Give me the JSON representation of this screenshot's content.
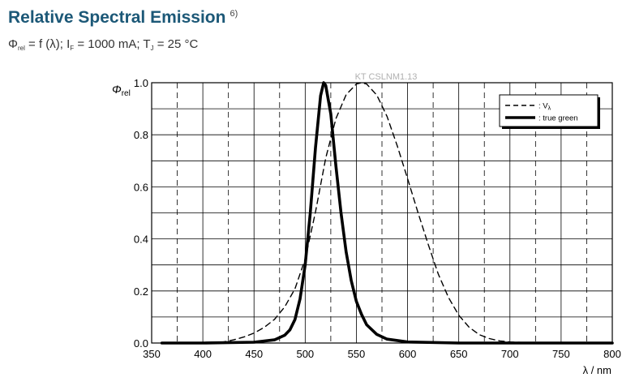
{
  "header": {
    "title": "Relative Spectral Emission",
    "title_footnote": "6)",
    "cond_phi": "Φ",
    "cond_phi_sub": "rel",
    "cond_part1": " = f (λ); I",
    "cond_if_sub": "F",
    "cond_part2": " = 1000 mA; T",
    "cond_tj_sub": "J",
    "cond_part3": " = 25 °C"
  },
  "chart_data": {
    "type": "line",
    "title": "Relative Spectral Emission",
    "watermark": "KT CSLNM1.13",
    "ylabel": "Φ",
    "ylabel_sub": "rel",
    "xlabel": "λ / nm",
    "xlim": [
      350,
      800
    ],
    "ylim": [
      0.0,
      1.0
    ],
    "x_ticks": [
      350,
      400,
      450,
      500,
      550,
      600,
      650,
      700,
      750,
      800
    ],
    "x_tick_labels": [
      "350",
      "400",
      "450",
      "500",
      "550",
      "600",
      "650",
      "700",
      "750",
      "800"
    ],
    "y_ticks": [
      0.0,
      0.2,
      0.4,
      0.6,
      0.8,
      1.0
    ],
    "y_tick_labels": [
      "0.0",
      "0.2",
      "0.4",
      "0.6",
      "0.8",
      "1.0"
    ],
    "grid": true,
    "legend_position": "top-right",
    "series": [
      {
        "name": "V",
        "legend_label": ": V",
        "legend_sub": "λ",
        "style": "dashed",
        "x": [
          360,
          380,
          400,
          410,
          420,
          430,
          440,
          450,
          460,
          470,
          480,
          490,
          500,
          510,
          520,
          530,
          540,
          550,
          555,
          560,
          570,
          580,
          590,
          600,
          610,
          620,
          630,
          640,
          650,
          660,
          670,
          680,
          690,
          700,
          720,
          740,
          760,
          780,
          800
        ],
        "y": [
          0.0,
          0.0,
          0.0,
          0.002,
          0.004,
          0.012,
          0.023,
          0.038,
          0.06,
          0.091,
          0.139,
          0.208,
          0.323,
          0.503,
          0.71,
          0.862,
          0.954,
          0.995,
          1.0,
          0.995,
          0.952,
          0.87,
          0.757,
          0.631,
          0.503,
          0.381,
          0.265,
          0.175,
          0.107,
          0.061,
          0.032,
          0.017,
          0.008,
          0.004,
          0.001,
          0.0,
          0.0,
          0.0,
          0.0
        ]
      },
      {
        "name": "true green",
        "legend_label": ": true green",
        "style": "solid",
        "x": [
          360,
          400,
          450,
          470,
          480,
          485,
          490,
          495,
          500,
          505,
          510,
          515,
          518,
          520,
          525,
          530,
          535,
          540,
          545,
          550,
          555,
          560,
          570,
          580,
          600,
          650,
          700,
          800
        ],
        "y": [
          0.0,
          0.0,
          0.003,
          0.012,
          0.03,
          0.05,
          0.09,
          0.17,
          0.3,
          0.5,
          0.75,
          0.95,
          1.0,
          0.99,
          0.88,
          0.68,
          0.5,
          0.35,
          0.24,
          0.16,
          0.11,
          0.07,
          0.033,
          0.015,
          0.004,
          0.0,
          0.0,
          0.0
        ]
      }
    ]
  },
  "style": {
    "title_color": "#1c5877",
    "grid_color": "#000000",
    "line_color": "#000000",
    "watermark_color": "#b0b0b0"
  }
}
